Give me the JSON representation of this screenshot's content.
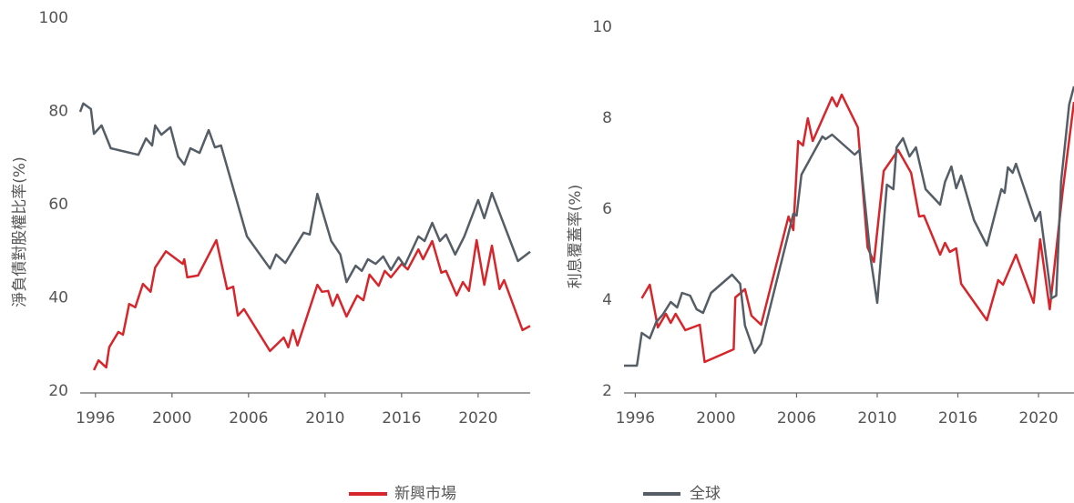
{
  "chart_data": [
    {
      "type": "line",
      "ylabel": "淨負債對股權比率(%)",
      "xlim": [
        1995.0,
        2024.4
      ],
      "ylim": [
        20,
        100
      ],
      "yticks": [
        20,
        40,
        60,
        80,
        100
      ],
      "xticks": [
        {
          "value": 1996,
          "label": "1996"
        },
        {
          "value": 2001,
          "label": "2000"
        },
        {
          "value": 2006,
          "label": "2006"
        },
        {
          "value": 2011,
          "label": "2010"
        },
        {
          "value": 2016,
          "label": "2016"
        },
        {
          "value": 2021,
          "label": "2020"
        }
      ],
      "series": [
        {
          "name": "新興市場",
          "color": "#d7262b",
          "x": [
            1995.9,
            1996.2,
            1996.7,
            1996.9,
            1997.5,
            1997.8,
            1998.2,
            1998.6,
            1999.1,
            1999.6,
            1999.9,
            2000.6,
            2001.7,
            2001.8,
            2002.0,
            2002.7,
            2003.9,
            2004.6,
            2005.0,
            2005.3,
            2005.7,
            2007.4,
            2008.3,
            2008.6,
            2008.9,
            2009.2,
            2010.5,
            2010.8,
            2011.2,
            2011.5,
            2011.8,
            2012.4,
            2013.1,
            2013.5,
            2013.9,
            2014.5,
            2014.9,
            2015.3,
            2016.0,
            2016.4,
            2017.1,
            2017.4,
            2018.0,
            2018.6,
            2018.9,
            2019.6,
            2020.0,
            2020.4,
            2020.9,
            2021.4,
            2021.9,
            2022.4,
            2022.7,
            2023.9,
            2024.4
          ],
          "values": [
            24.5,
            26.6,
            25.1,
            29.4,
            32.7,
            32.1,
            38.7,
            38.0,
            43.0,
            41.3,
            46.5,
            50.0,
            47.3,
            48.3,
            44.4,
            44.8,
            52.4,
            41.9,
            42.4,
            36.2,
            37.6,
            28.6,
            31.5,
            29.4,
            33.1,
            29.8,
            42.8,
            41.3,
            41.5,
            38.3,
            40.7,
            36.0,
            40.5,
            39.5,
            45.0,
            42.6,
            45.8,
            44.4,
            47.3,
            46.1,
            50.4,
            48.3,
            52.2,
            45.4,
            45.8,
            40.5,
            43.4,
            41.5,
            52.4,
            42.8,
            51.2,
            41.9,
            43.8,
            33.1,
            34.0
          ]
        },
        {
          "name": "全球",
          "color": "#555d66",
          "x": [
            1995.0,
            1995.2,
            1995.7,
            1995.9,
            1996.4,
            1997.0,
            1998.8,
            1999.3,
            1999.7,
            1999.9,
            2000.3,
            2000.9,
            2001.4,
            2001.8,
            2002.2,
            2002.8,
            2003.4,
            2003.8,
            2004.2,
            2005.9,
            2007.4,
            2007.8,
            2008.4,
            2009.6,
            2010.0,
            2010.5,
            2011.4,
            2012.0,
            2012.4,
            2013.0,
            2013.4,
            2013.8,
            2014.3,
            2014.8,
            2015.3,
            2015.8,
            2016.2,
            2017.1,
            2017.5,
            2018.0,
            2018.5,
            2018.9,
            2019.5,
            2020.1,
            2021.0,
            2021.4,
            2021.9,
            2023.6,
            2024.4
          ],
          "values": [
            79.9,
            81.7,
            80.5,
            75.2,
            77.0,
            72.1,
            70.7,
            74.2,
            72.7,
            77.0,
            75.0,
            76.6,
            70.3,
            68.6,
            72.1,
            71.1,
            76.0,
            72.3,
            72.7,
            53.2,
            46.3,
            49.3,
            47.5,
            54.0,
            53.6,
            62.3,
            52.2,
            49.3,
            43.4,
            46.9,
            45.8,
            48.3,
            47.3,
            48.9,
            46.0,
            48.7,
            46.9,
            53.2,
            52.2,
            56.1,
            52.2,
            53.6,
            49.3,
            53.2,
            61.0,
            57.1,
            62.5,
            47.9,
            49.9
          ]
        }
      ]
    },
    {
      "type": "line",
      "ylabel": "利息覆蓋率(%)",
      "xlim": [
        1995.3,
        2023.2
      ],
      "ylim": [
        2,
        10
      ],
      "yticks": [
        2,
        4,
        6,
        8,
        10
      ],
      "xticks": [
        {
          "value": 1996,
          "label": "1996"
        },
        {
          "value": 2001,
          "label": "2000"
        },
        {
          "value": 2006,
          "label": "2006"
        },
        {
          "value": 2011,
          "label": "2010"
        },
        {
          "value": 2016,
          "label": "2016"
        },
        {
          "value": 2021,
          "label": "2020"
        }
      ],
      "series": [
        {
          "color": "#d7262b",
          "x": [
            1996.4,
            1996.9,
            1997.4,
            1997.9,
            1998.2,
            1998.5,
            1999.1,
            2000.0,
            2000.3,
            2002.1,
            2002.2,
            2002.8,
            2003.2,
            2003.8,
            2005.5,
            2005.8,
            2006.1,
            2006.4,
            2006.7,
            2007.0,
            2008.2,
            2008.5,
            2008.8,
            2009.8,
            2010.4,
            2010.8,
            2011.4,
            2012.3,
            2013.1,
            2013.6,
            2013.9,
            2014.9,
            2015.2,
            2015.5,
            2015.9,
            2016.2,
            2017.8,
            2018.5,
            2018.8,
            2019.6,
            2020.7,
            2021.1,
            2021.7,
            2022.5,
            2023.2
          ],
          "values": [
            4.04,
            4.34,
            3.4,
            3.7,
            3.5,
            3.7,
            3.34,
            3.46,
            2.64,
            2.92,
            4.06,
            4.24,
            3.66,
            3.46,
            5.84,
            5.54,
            7.5,
            7.4,
            8.0,
            7.5,
            8.46,
            8.26,
            8.52,
            7.8,
            5.16,
            4.84,
            6.84,
            7.3,
            6.8,
            5.84,
            5.86,
            5.0,
            5.26,
            5.06,
            5.14,
            4.36,
            3.56,
            4.44,
            4.34,
            5.0,
            3.94,
            5.34,
            3.8,
            6.4,
            8.36
          ]
        },
        {
          "color": "#555d66",
          "x": [
            1995.3,
            1996.1,
            1996.4,
            1996.9,
            1997.3,
            1997.7,
            1998.2,
            1998.6,
            1998.9,
            1999.4,
            1999.8,
            2000.2,
            2000.7,
            2002.0,
            2002.5,
            2002.8,
            2003.4,
            2003.8,
            2005.8,
            2006.0,
            2006.3,
            2007.6,
            2007.8,
            2008.2,
            2009.6,
            2009.9,
            2010.6,
            2011.0,
            2011.6,
            2012.0,
            2012.2,
            2012.6,
            2013.0,
            2013.4,
            2014.0,
            2014.9,
            2015.2,
            2015.6,
            2015.9,
            2016.2,
            2017.0,
            2017.8,
            2018.7,
            2018.9,
            2019.1,
            2019.4,
            2019.6,
            2020.8,
            2021.1,
            2021.8,
            2022.1,
            2022.4,
            2022.9,
            2023.2
          ],
          "values": [
            2.56,
            2.56,
            3.28,
            3.16,
            3.52,
            3.68,
            3.96,
            3.84,
            4.16,
            4.1,
            3.8,
            3.72,
            4.16,
            4.56,
            4.36,
            3.44,
            2.84,
            3.04,
            5.9,
            5.86,
            6.76,
            7.6,
            7.54,
            7.64,
            7.2,
            7.3,
            4.9,
            3.94,
            6.54,
            6.44,
            7.36,
            7.56,
            7.16,
            7.36,
            6.44,
            6.1,
            6.6,
            6.94,
            6.46,
            6.74,
            5.76,
            5.2,
            6.44,
            6.36,
            6.92,
            6.8,
            7.0,
            5.74,
            5.94,
            4.04,
            4.1,
            6.6,
            8.3,
            8.7
          ]
        }
      ]
    }
  ]
}
